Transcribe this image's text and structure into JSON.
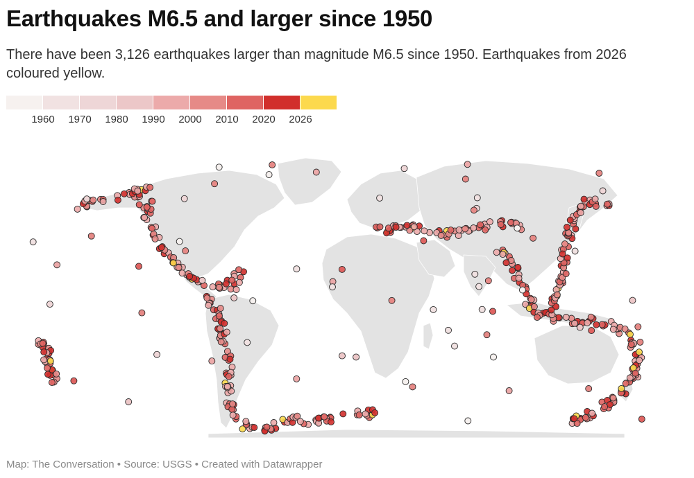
{
  "title": "Earthquakes M6.5 and larger since 1950",
  "subtitle": "There have been 3,126 earthquakes larger than magnitude M6.5 since 1950. Earthquakes from 2026 coloured yellow.",
  "legend": {
    "labels": [
      "1960",
      "1970",
      "1980",
      "1990",
      "2000",
      "2010",
      "2020",
      "2026"
    ],
    "colors": [
      "#f6f1ef",
      "#f1e2e2",
      "#eed6d7",
      "#ecc7c8",
      "#ecaaaa",
      "#e68a87",
      "#df6462",
      "#d12f2c",
      "#fcd94d"
    ]
  },
  "map": {
    "land_color": "#e3e3e3",
    "stroke_color": "#2a2a2a"
  },
  "footer": "Map: The Conversation • Source: USGS • Created with Datawrapper"
}
